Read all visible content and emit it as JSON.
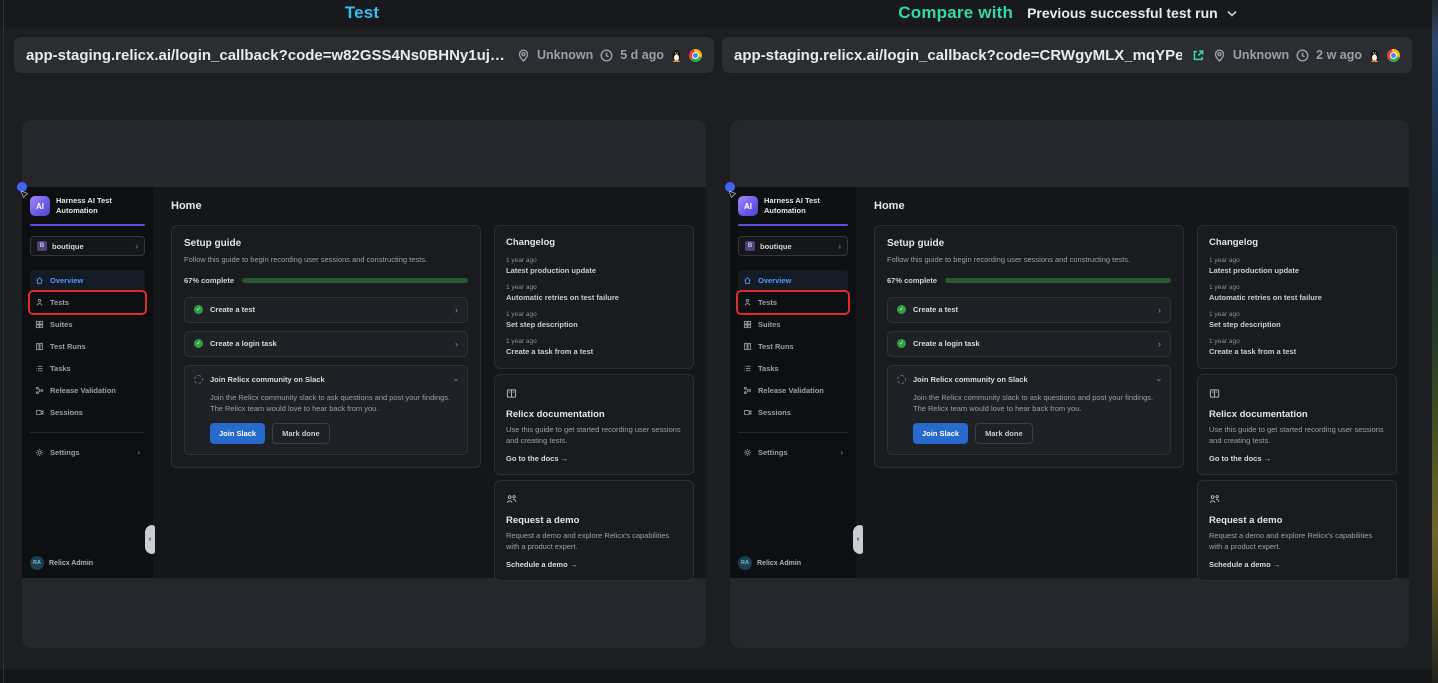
{
  "header": {
    "left_title": "Test",
    "right_title": "Compare with",
    "compare_selector": "Previous successful test run"
  },
  "left_pane": {
    "url": "app-staging.relicx.ai/login_callback?code=w82GSS4Ns0BHNy1uj…",
    "location": "Unknown",
    "time_ago": "5 d ago",
    "os_icon": "linux-tux",
    "browser_icon": "chrome"
  },
  "right_pane": {
    "url": "app-staging.relicx.ai/login_callback?code=CRWgyMLX_mqYPe…",
    "location": "Unknown",
    "time_ago": "2 w ago",
    "os_icon": "linux-tux",
    "browser_icon": "chrome",
    "external_link_icon": "open-in-new-tab"
  },
  "app": {
    "brand": {
      "line1": "Harness AI Test",
      "line2": "Automation",
      "logo_text": "AI"
    },
    "project": {
      "badge": "B",
      "name": "boutique"
    },
    "nav": [
      {
        "label": "Overview",
        "icon": "home-icon",
        "active": true
      },
      {
        "label": "Tests",
        "icon": "tests-icon",
        "highlighted": true
      },
      {
        "label": "Suites",
        "icon": "suites-icon"
      },
      {
        "label": "Test Runs",
        "icon": "test-runs-icon"
      },
      {
        "label": "Tasks",
        "icon": "tasks-icon"
      },
      {
        "label": "Release Validation",
        "icon": "release-validation-icon"
      },
      {
        "label": "Sessions",
        "icon": "sessions-icon"
      },
      {
        "label": "Settings",
        "icon": "settings-icon"
      }
    ],
    "user": {
      "initials": "RA",
      "name": "Relicx Admin"
    },
    "main": {
      "title": "Home",
      "setup_guide": {
        "title": "Setup guide",
        "description": "Follow this guide to begin recording user sessions and constructing tests.",
        "progress_label": "67% complete",
        "progress_percent": 67,
        "items": [
          {
            "label": "Create a test",
            "state": "done"
          },
          {
            "label": "Create a login task",
            "state": "done"
          },
          {
            "label": "Join Relicx community on Slack",
            "state": "open",
            "description": "Join the Relicx community slack to ask questions and post your findings. The Relicx team would love to hear back from you.",
            "primary_button": "Join Slack",
            "secondary_button": "Mark done"
          }
        ]
      },
      "changelog": {
        "title": "Changelog",
        "entries": [
          {
            "time": "1 year ago",
            "title": "Latest production update"
          },
          {
            "time": "1 year ago",
            "title": "Automatic retries on test failure"
          },
          {
            "time": "1 year ago",
            "title": "Set step description"
          },
          {
            "time": "1 year ago",
            "title": "Create a task from a test"
          }
        ]
      },
      "docs_card": {
        "icon": "book-icon",
        "title": "Relicx documentation",
        "description": "Use this guide to get started recording user sessions and creating tests.",
        "link": "Go to the docs →"
      },
      "demo_card": {
        "icon": "people-icon",
        "title": "Request a demo",
        "description": "Request a demo and explore Relicx's capabilities with a product expert.",
        "link": "Schedule a demo →"
      }
    }
  },
  "colors": {
    "test_title": "#38bdf0",
    "compare_title": "#35d6ab",
    "highlight_box_red": "#dd2b2b",
    "progress_green": "#41aa4c",
    "primary_button_blue": "#2769cc",
    "active_nav_blue": "#4f9cff"
  }
}
